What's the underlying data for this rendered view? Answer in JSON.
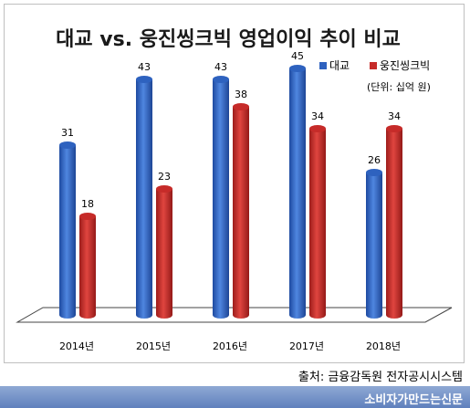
{
  "chart_data": {
    "type": "bar",
    "title": "대교 vs. 웅진씽크빅 영업이익 추이 비교",
    "unit_note": "(단위: 십억 원)",
    "categories": [
      "2014년",
      "2015년",
      "2016년",
      "2017년",
      "2018년"
    ],
    "series": [
      {
        "name": "대교",
        "values": [
          31,
          43,
          43,
          45,
          26
        ],
        "color": "#2e62bf"
      },
      {
        "name": "웅진씽크빅",
        "values": [
          18,
          23,
          38,
          34,
          34
        ],
        "color": "#c62b29"
      }
    ],
    "ylim": [
      0,
      50
    ],
    "grid": false,
    "legend": "top-right",
    "style": "3d-cylinder"
  },
  "source": "출처: 금융감독원 전자공시시스템",
  "brand": "소비자가만드는신문"
}
